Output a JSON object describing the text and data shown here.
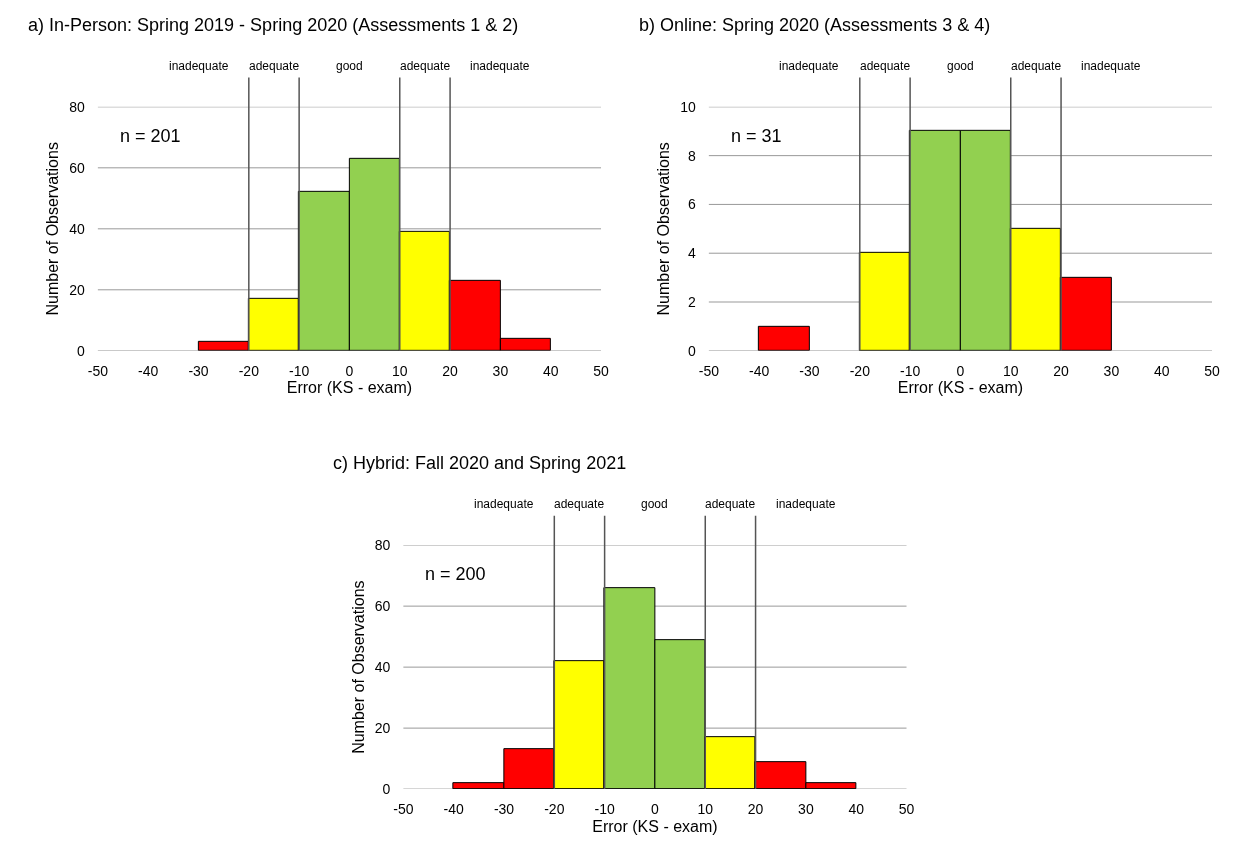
{
  "chart_data": [
    {
      "type": "histogram",
      "title": "a) In-Person: Spring 2019 - Spring 2020 (Assessments 1 & 2)",
      "xlabel": "Error (KS - exam)",
      "ylabel": "Number of Observations",
      "bins": [
        -30,
        -20,
        -10,
        0,
        10,
        20,
        30,
        40
      ],
      "values": [
        3,
        17,
        52,
        63,
        39,
        23,
        4
      ],
      "colors": [
        "#ff0000",
        "#ffff00",
        "#92d050",
        "#92d050",
        "#ffff00",
        "#ff0000",
        "#ff0000"
      ],
      "xlim": [
        -50,
        50
      ],
      "xticks": [
        -50,
        -40,
        -30,
        -20,
        -10,
        0,
        10,
        20,
        30,
        40,
        50
      ],
      "ylim": [
        0,
        80
      ],
      "yticks": [
        0,
        20,
        40,
        60,
        80
      ],
      "grid": "y",
      "ref_lines": [
        {
          "axis": "x",
          "value": -20,
          "color": "#555555"
        },
        {
          "axis": "x",
          "value": -10,
          "color": "#555555"
        },
        {
          "axis": "x",
          "value": 10,
          "color": "#555555"
        },
        {
          "axis": "x",
          "value": 20,
          "color": "#555555"
        }
      ],
      "annotations": [
        "n = 201",
        "inadequate",
        "adequate",
        "good",
        "adequate",
        "inadequate"
      ]
    },
    {
      "type": "histogram",
      "title": "b) Online: Spring 2020 (Assessments 3 & 4)",
      "xlabel": "Error (KS - exam)",
      "ylabel": "Number of Observations",
      "bins": [
        -40,
        -30,
        -20,
        -10,
        0,
        10,
        20,
        30
      ],
      "values": [
        1,
        0,
        4,
        9,
        9,
        5,
        3
      ],
      "colors": [
        "#ff0000",
        "#ff0000",
        "#ffff00",
        "#92d050",
        "#92d050",
        "#ffff00",
        "#ff0000"
      ],
      "xlim": [
        -50,
        50
      ],
      "xticks": [
        -50,
        -40,
        -30,
        -20,
        -10,
        0,
        10,
        20,
        30,
        40,
        50
      ],
      "ylim": [
        0,
        10
      ],
      "yticks": [
        0,
        2,
        4,
        6,
        8,
        10
      ],
      "grid": "y",
      "ref_lines": [
        {
          "axis": "x",
          "value": -20,
          "color": "#555555"
        },
        {
          "axis": "x",
          "value": -10,
          "color": "#555555"
        },
        {
          "axis": "x",
          "value": 10,
          "color": "#555555"
        },
        {
          "axis": "x",
          "value": 20,
          "color": "#555555"
        }
      ],
      "annotations": [
        "n = 31",
        "inadequate",
        "adequate",
        "good",
        "adequate",
        "inadequate"
      ]
    },
    {
      "type": "histogram",
      "title": "c) Hybrid: Fall 2020 and Spring 2021",
      "xlabel": "Error (KS - exam)",
      "ylabel": "Number of Observations",
      "bins": [
        -40,
        -30,
        -20,
        -10,
        0,
        10,
        20,
        30,
        40
      ],
      "values": [
        2,
        13,
        42,
        66,
        49,
        17,
        9,
        2
      ],
      "colors": [
        "#ff0000",
        "#ff0000",
        "#ffff00",
        "#92d050",
        "#92d050",
        "#ffff00",
        "#ff0000",
        "#ff0000"
      ],
      "xlim": [
        -50,
        50
      ],
      "xticks": [
        -50,
        -40,
        -30,
        -20,
        -10,
        0,
        10,
        20,
        30,
        40,
        50
      ],
      "ylim": [
        0,
        80
      ],
      "yticks": [
        0,
        20,
        40,
        60,
        80
      ],
      "grid": "y",
      "ref_lines": [
        {
          "axis": "x",
          "value": -20,
          "color": "#555555"
        },
        {
          "axis": "x",
          "value": -10,
          "color": "#555555"
        },
        {
          "axis": "x",
          "value": 10,
          "color": "#555555"
        },
        {
          "axis": "x",
          "value": 20,
          "color": "#555555"
        }
      ],
      "annotations": [
        "n = 200",
        "inadequate",
        "adequate",
        "good",
        "adequate",
        "inadequate"
      ]
    }
  ]
}
